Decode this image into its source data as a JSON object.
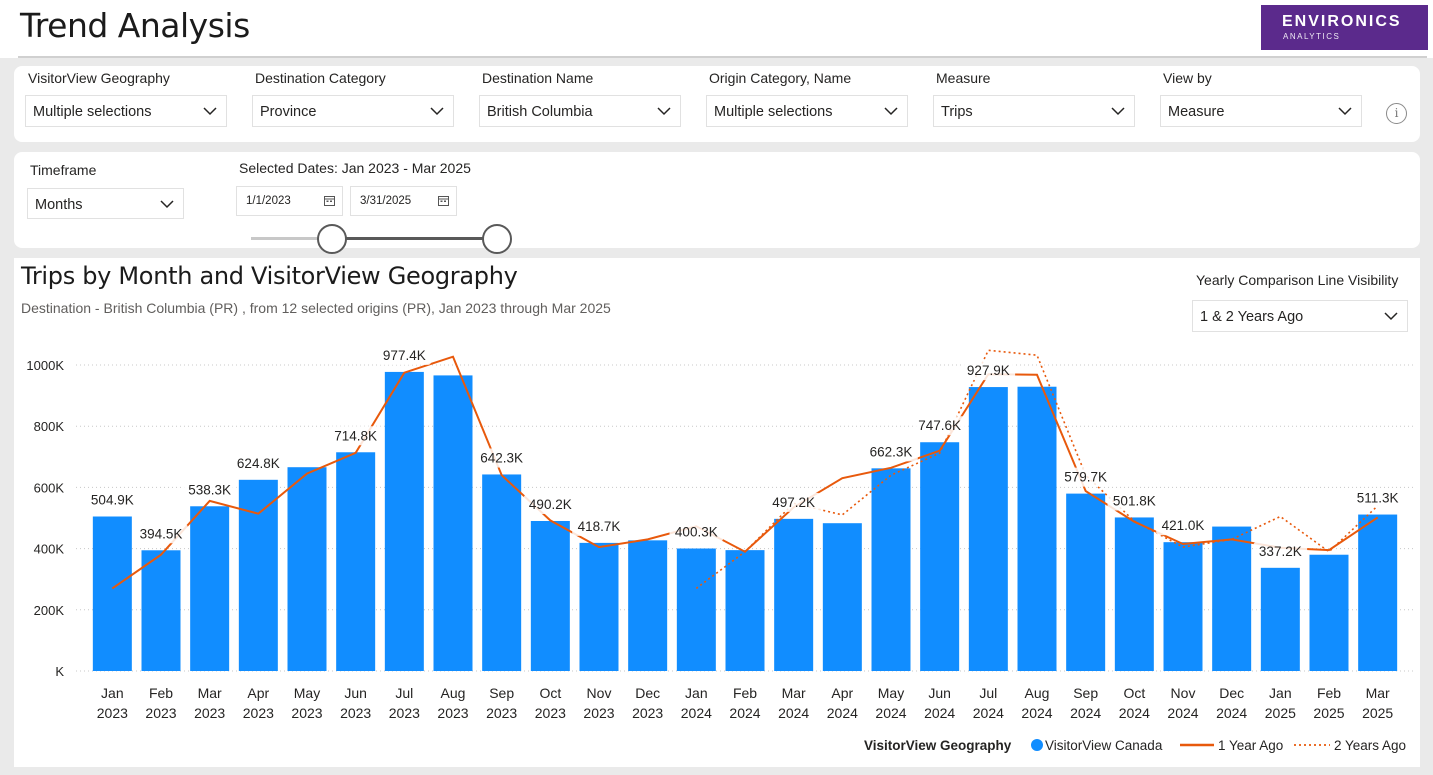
{
  "header": {
    "title": "Trend Analysis",
    "logo_line1": "ENVIRONICS",
    "logo_line2": "ANALYTICS"
  },
  "filters": [
    {
      "label": "VisitorView Geography",
      "value": "Multiple selections"
    },
    {
      "label": "Destination Category",
      "value": "Province"
    },
    {
      "label": "Destination Name",
      "value": "British Columbia"
    },
    {
      "label": "Origin Category, Name",
      "value": "Multiple selections"
    },
    {
      "label": "Measure",
      "value": "Trips"
    },
    {
      "label": "View by",
      "value": "Measure"
    }
  ],
  "info_glyph": "i",
  "timeframe": {
    "label": "Timeframe",
    "value": "Months",
    "selected_dates_text": "Selected Dates: Jan 2023 - Mar 2025",
    "start_date": "1/1/2023",
    "end_date": "3/31/2025"
  },
  "visibility": {
    "label": "Yearly Comparison Line Visibility",
    "value": "1 & 2 Years Ago"
  },
  "colors": {
    "bar": "#118dff",
    "line_1y": "#e8590c",
    "line_2y": "#e8590c",
    "logo_bg": "#5b2a8c"
  },
  "chart_data": {
    "type": "bar",
    "title": "Trips by Month and VisitorView Geography",
    "subtitle": "Destination - British Columbia (PR) , from 12 selected origins (PR), Jan 2023 through Mar 2025",
    "categories": [
      [
        "Jan",
        "2023"
      ],
      [
        "Feb",
        "2023"
      ],
      [
        "Mar",
        "2023"
      ],
      [
        "Apr",
        "2023"
      ],
      [
        "May",
        "2023"
      ],
      [
        "Jun",
        "2023"
      ],
      [
        "Jul",
        "2023"
      ],
      [
        "Aug",
        "2023"
      ],
      [
        "Sep",
        "2023"
      ],
      [
        "Oct",
        "2023"
      ],
      [
        "Nov",
        "2023"
      ],
      [
        "Dec",
        "2023"
      ],
      [
        "Jan",
        "2024"
      ],
      [
        "Feb",
        "2024"
      ],
      [
        "Mar",
        "2024"
      ],
      [
        "Apr",
        "2024"
      ],
      [
        "May",
        "2024"
      ],
      [
        "Jun",
        "2024"
      ],
      [
        "Jul",
        "2024"
      ],
      [
        "Aug",
        "2024"
      ],
      [
        "Sep",
        "2024"
      ],
      [
        "Oct",
        "2024"
      ],
      [
        "Nov",
        "2024"
      ],
      [
        "Dec",
        "2024"
      ],
      [
        "Jan",
        "2025"
      ],
      [
        "Feb",
        "2025"
      ],
      [
        "Mar",
        "2025"
      ]
    ],
    "ylim": [
      0,
      1000000
    ],
    "yticks": [
      {
        "value": 0,
        "label": "K"
      },
      {
        "value": 200000,
        "label": "200K"
      },
      {
        "value": 400000,
        "label": "400K"
      },
      {
        "value": 600000,
        "label": "600K"
      },
      {
        "value": 800000,
        "label": "800K"
      },
      {
        "value": 1000000,
        "label": "1000K"
      }
    ],
    "legend_title": "VisitorView Geography",
    "legend_position": "bottom-right",
    "series": [
      {
        "name": "VisitorView Canada",
        "kind": "bar",
        "values": [
          504900,
          394500,
          538300,
          624800,
          666000,
          714800,
          977400,
          966000,
          642300,
          490200,
          418700,
          427000,
          400300,
          395000,
          497200,
          483000,
          662300,
          747600,
          927900,
          929000,
          579700,
          501800,
          421000,
          472000,
          337200,
          380000,
          511300
        ]
      },
      {
        "name": "1 Year Ago",
        "kind": "line",
        "values": [
          270000,
          380000,
          556000,
          514000,
          645000,
          713000,
          975000,
          1027000,
          640000,
          492000,
          405000,
          430000,
          473000,
          390000,
          535000,
          630000,
          664000,
          720000,
          970000,
          968000,
          588000,
          488000,
          415000,
          430000,
          403000,
          395000,
          502000
        ]
      },
      {
        "name": "2 Years Ago",
        "kind": "dotted-line",
        "values": [
          null,
          null,
          null,
          null,
          null,
          null,
          null,
          null,
          null,
          null,
          null,
          null,
          270000,
          390000,
          548000,
          510000,
          640000,
          712000,
          1048000,
          1032000,
          640000,
          490000,
          405000,
          430000,
          505000,
          390000,
          540000
        ]
      }
    ],
    "data_labels": [
      {
        "index": 0,
        "text": "504.9K"
      },
      {
        "index": 1,
        "text": "394.5K"
      },
      {
        "index": 2,
        "text": "538.3K"
      },
      {
        "index": 3,
        "text": "624.8K"
      },
      {
        "index": 5,
        "text": "714.8K"
      },
      {
        "index": 6,
        "text": "977.4K"
      },
      {
        "index": 8,
        "text": "642.3K"
      },
      {
        "index": 9,
        "text": "490.2K"
      },
      {
        "index": 10,
        "text": "418.7K"
      },
      {
        "index": 12,
        "text": "400.3K"
      },
      {
        "index": 14,
        "text": "497.2K"
      },
      {
        "index": 16,
        "text": "662.3K"
      },
      {
        "index": 17,
        "text": "747.6K"
      },
      {
        "index": 18,
        "text": "927.9K"
      },
      {
        "index": 20,
        "text": "579.7K"
      },
      {
        "index": 21,
        "text": "501.8K"
      },
      {
        "index": 22,
        "text": "421.0K"
      },
      {
        "index": 24,
        "text": "337.2K"
      },
      {
        "index": 26,
        "text": "511.3K"
      }
    ]
  }
}
